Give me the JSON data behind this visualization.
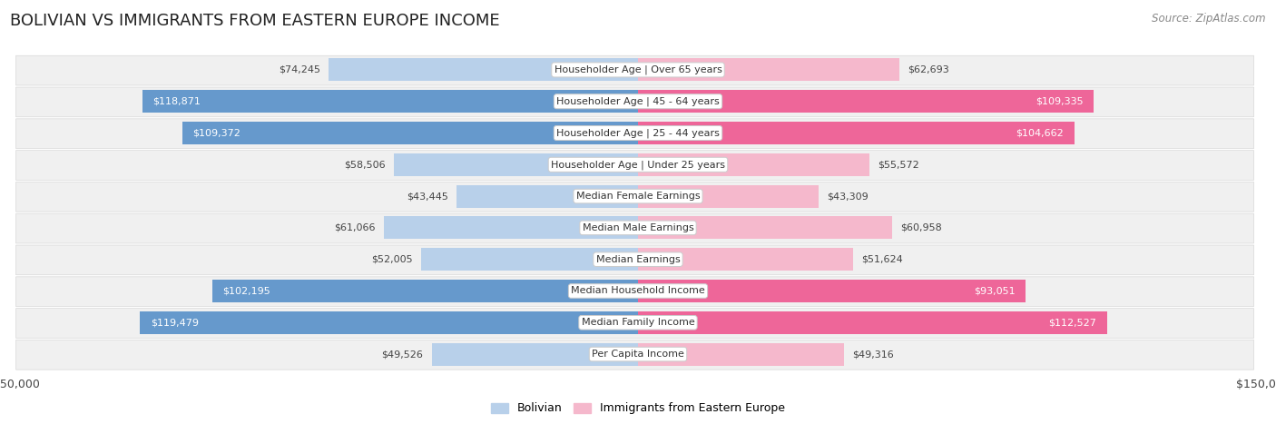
{
  "title": "BOLIVIAN VS IMMIGRANTS FROM EASTERN EUROPE INCOME",
  "source": "Source: ZipAtlas.com",
  "categories": [
    "Per Capita Income",
    "Median Family Income",
    "Median Household Income",
    "Median Earnings",
    "Median Male Earnings",
    "Median Female Earnings",
    "Householder Age | Under 25 years",
    "Householder Age | 25 - 44 years",
    "Householder Age | 45 - 64 years",
    "Householder Age | Over 65 years"
  ],
  "bolivian_values": [
    49526,
    119479,
    102195,
    52005,
    61066,
    43445,
    58506,
    109372,
    118871,
    74245
  ],
  "eastern_europe_values": [
    49316,
    112527,
    93051,
    51624,
    60958,
    43309,
    55572,
    104662,
    109335,
    62693
  ],
  "bolivian_color_light": "#b8d0ea",
  "bolivian_color_dark": "#6699cc",
  "eastern_europe_color_light": "#f5b8cc",
  "eastern_europe_color_dark": "#ee6699",
  "bar_label_dark_threshold": 80000,
  "max_value": 150000,
  "background_color": "#ffffff",
  "row_bg": "#f0f0f0",
  "row_border": "#d8d8d8",
  "title_fontsize": 13,
  "source_fontsize": 8.5,
  "label_fontsize": 8,
  "cat_fontsize": 8,
  "bar_height": 0.72
}
